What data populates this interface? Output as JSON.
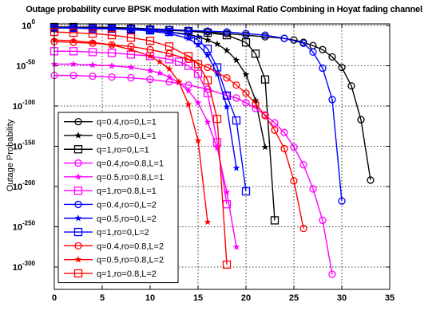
{
  "chart_data": {
    "type": "line",
    "title": "Outage probability curve BPSK modulation with Maximal Ratio Combining in Hoyat fading channel",
    "xlabel": "",
    "ylabel": "Outage Probability",
    "xlim": [
      0,
      35
    ],
    "ylim_exponent": [
      -320,
      0
    ],
    "y_scale": "log",
    "x_ticks": [
      "0",
      "5",
      "10",
      "15",
      "20",
      "25",
      "30",
      "35"
    ],
    "y_ticks": [
      {
        "exp": 0,
        "base": "10",
        "sup": "0"
      },
      {
        "exp": -50,
        "base": "10",
        "sup": "-50"
      },
      {
        "exp": -100,
        "base": "10",
        "sup": "-100"
      },
      {
        "exp": -150,
        "base": "10",
        "sup": "-150"
      },
      {
        "exp": -200,
        "base": "10",
        "sup": "-200"
      },
      {
        "exp": -250,
        "base": "10",
        "sup": "-250"
      },
      {
        "exp": -300,
        "base": "10",
        "sup": "-300"
      }
    ],
    "grid": true,
    "legend_position": "bottom-left",
    "series": [
      {
        "name": "q=0.4,ro=0,L=1",
        "color": "#000000",
        "marker": "circle",
        "x": [
          0,
          2,
          4,
          6,
          8,
          10,
          12,
          14,
          16,
          18,
          20,
          22,
          24,
          25,
          26,
          27,
          28,
          29,
          30,
          31,
          32,
          33
        ],
        "y": [
          -2,
          -2,
          -2,
          -2.5,
          -3,
          -4,
          -5,
          -7,
          -8,
          -10,
          -12,
          -14,
          -16,
          -18,
          -21,
          -25,
          -30,
          -39,
          -52,
          -75,
          -117,
          -192
        ]
      },
      {
        "name": "q=0.5,ro=0,L=1",
        "color": "#000000",
        "marker": "star",
        "x": [
          0,
          2,
          4,
          6,
          8,
          10,
          12,
          14,
          15,
          16,
          17,
          18,
          19,
          20,
          21,
          22
        ],
        "y": [
          -2,
          -2,
          -2.5,
          -3,
          -4,
          -6,
          -8,
          -11,
          -14,
          -18,
          -23,
          -31,
          -43,
          -61,
          -93,
          -151
        ]
      },
      {
        "name": "q=1,ro=0,L=1",
        "color": "#000000",
        "marker": "square",
        "x": [
          0,
          2,
          4,
          6,
          8,
          10,
          12,
          14,
          16,
          18,
          20,
          21,
          22,
          23
        ],
        "y": [
          -2,
          -2,
          -2.5,
          -3,
          -4,
          -5,
          -6,
          -7,
          -9,
          -12,
          -21,
          -35,
          -67,
          -242
        ]
      },
      {
        "name": "q=0.4,ro=0.8,L=1",
        "color": "#ff00ff",
        "marker": "circle",
        "x": [
          0,
          2,
          4,
          6,
          8,
          10,
          12,
          14,
          16,
          18,
          19,
          20,
          21,
          22,
          23,
          24,
          25,
          26,
          27,
          28,
          29
        ],
        "y": [
          -62,
          -62,
          -63,
          -64,
          -65,
          -67,
          -70,
          -74,
          -79,
          -87,
          -90,
          -96,
          -103,
          -111,
          -121,
          -133,
          -151,
          -173,
          -203,
          -242,
          -309
        ]
      },
      {
        "name": "q=0.5,ro=0.8,L=1",
        "color": "#ff00ff",
        "marker": "star",
        "x": [
          0,
          2,
          4,
          6,
          8,
          10,
          11,
          12,
          13,
          14,
          15,
          16,
          17,
          18,
          19
        ],
        "y": [
          -48,
          -48,
          -49,
          -50,
          -52,
          -56,
          -59,
          -64,
          -71,
          -81,
          -96,
          -120,
          -152,
          -207,
          -275
        ]
      },
      {
        "name": "q=1,ro=0.8,L=1",
        "color": "#ff00ff",
        "marker": "square",
        "x": [
          0,
          2,
          4,
          6,
          8,
          10,
          12,
          13,
          14,
          15,
          16,
          17,
          18
        ],
        "y": [
          -32,
          -32,
          -33,
          -34,
          -36,
          -38,
          -42,
          -45,
          -50,
          -60,
          -84,
          -145,
          -222
        ]
      },
      {
        "name": "q=0.4,ro=0,L=2",
        "color": "#0000ff",
        "marker": "circle",
        "x": [
          0,
          2,
          4,
          6,
          8,
          10,
          12,
          14,
          16,
          18,
          20,
          22,
          24,
          26,
          27,
          28,
          29,
          30
        ],
        "y": [
          -3,
          -3,
          -3,
          -4,
          -4,
          -5,
          -5,
          -6,
          -7,
          -8,
          -10,
          -12,
          -16,
          -22,
          -33,
          -53,
          -92,
          -218
        ]
      },
      {
        "name": "q=0.5,ro=0,L=2",
        "color": "#0000ff",
        "marker": "star",
        "x": [
          0,
          2,
          4,
          6,
          8,
          10,
          12,
          14,
          15,
          16,
          17,
          18,
          19
        ],
        "y": [
          -3,
          -3,
          -4,
          -4,
          -5,
          -7,
          -10,
          -16,
          -24,
          -37,
          -60,
          -101,
          -177
        ]
      },
      {
        "name": "q=1,ro=0,L=2",
        "color": "#0000ff",
        "marker": "square",
        "x": [
          0,
          2,
          4,
          6,
          8,
          10,
          12,
          14,
          15,
          16,
          17,
          18,
          19,
          20
        ],
        "y": [
          -3,
          -3,
          -4,
          -4,
          -5,
          -6,
          -8,
          -12,
          -18,
          -29,
          -52,
          -87,
          -118,
          -206
        ]
      },
      {
        "name": "q=0.4,ro=0.8,L=2",
        "color": "#ff0000",
        "marker": "circle",
        "x": [
          0,
          2,
          4,
          6,
          8,
          10,
          12,
          14,
          16,
          18,
          19,
          20,
          21,
          22,
          23,
          24,
          25,
          26
        ],
        "y": [
          -20,
          -21,
          -22,
          -24,
          -26,
          -30,
          -35,
          -42,
          -52,
          -65,
          -74,
          -84,
          -97,
          -112,
          -130,
          -153,
          -193,
          -252
        ]
      },
      {
        "name": "q=0.5,ro=0.8,L=2",
        "color": "#ff0000",
        "marker": "star",
        "x": [
          0,
          2,
          4,
          6,
          8,
          10,
          11,
          12,
          13,
          14,
          15,
          16
        ],
        "y": [
          -18,
          -19,
          -21,
          -24,
          -30,
          -38,
          -45,
          -54,
          -70,
          -98,
          -143,
          -244
        ]
      },
      {
        "name": "q=1,ro=0.8,L=2",
        "color": "#ff0000",
        "marker": "square",
        "x": [
          0,
          2,
          4,
          6,
          8,
          10,
          12,
          14,
          15,
          16,
          17,
          18
        ],
        "y": [
          -8,
          -9,
          -10,
          -12,
          -15,
          -19,
          -26,
          -38,
          -48,
          -68,
          -116,
          -297
        ]
      }
    ]
  }
}
